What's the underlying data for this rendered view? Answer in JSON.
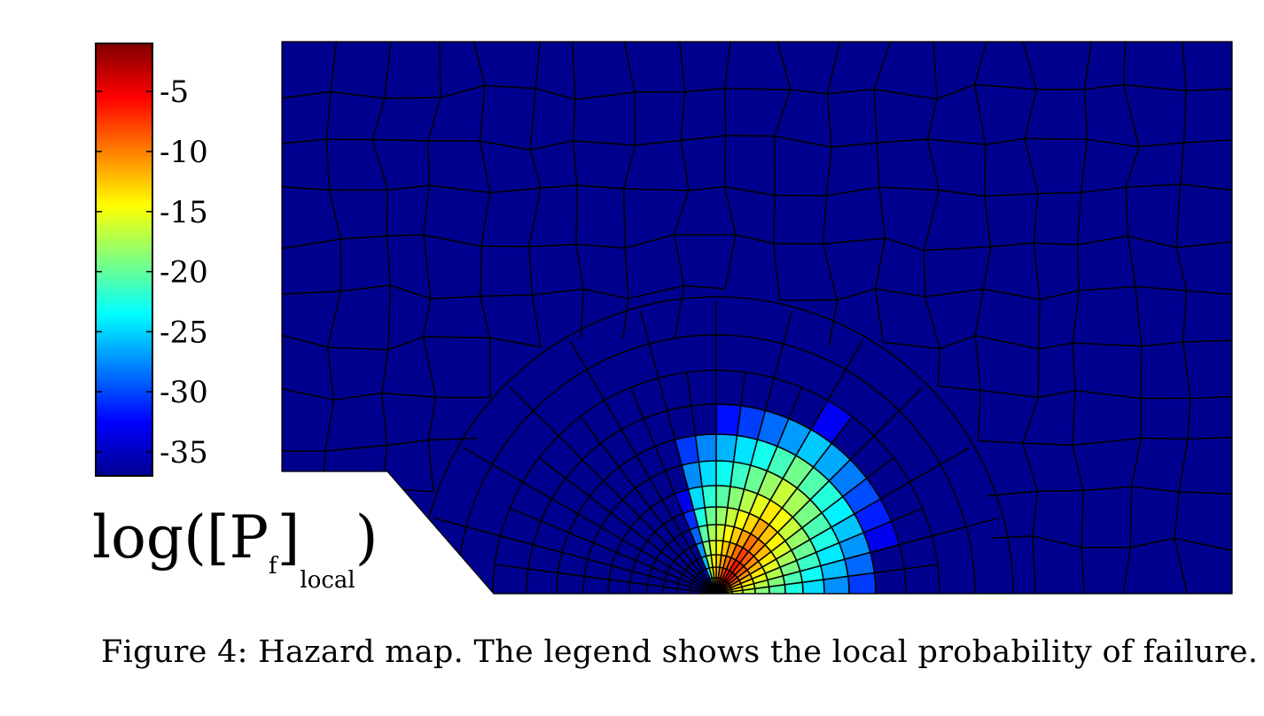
{
  "colorbar": {
    "ticks": [
      "-5",
      "-10",
      "-15",
      "-20",
      "-25",
      "-30",
      "-35"
    ],
    "tick_values": [
      -5,
      -10,
      -15,
      -20,
      -25,
      -30,
      -35
    ],
    "range": [
      -37,
      -1
    ],
    "colormap": "jet"
  },
  "legend_title": {
    "prefix": "log([P",
    "sub_f": "f",
    "mid": "]",
    "sub_local": "local",
    "suffix": ")"
  },
  "mesh_map": {
    "background_value": -37,
    "hot_spot": {
      "peak_value": -2
    }
  },
  "caption": "Figure 4: Hazard map. The legend shows the local probability of failure."
}
